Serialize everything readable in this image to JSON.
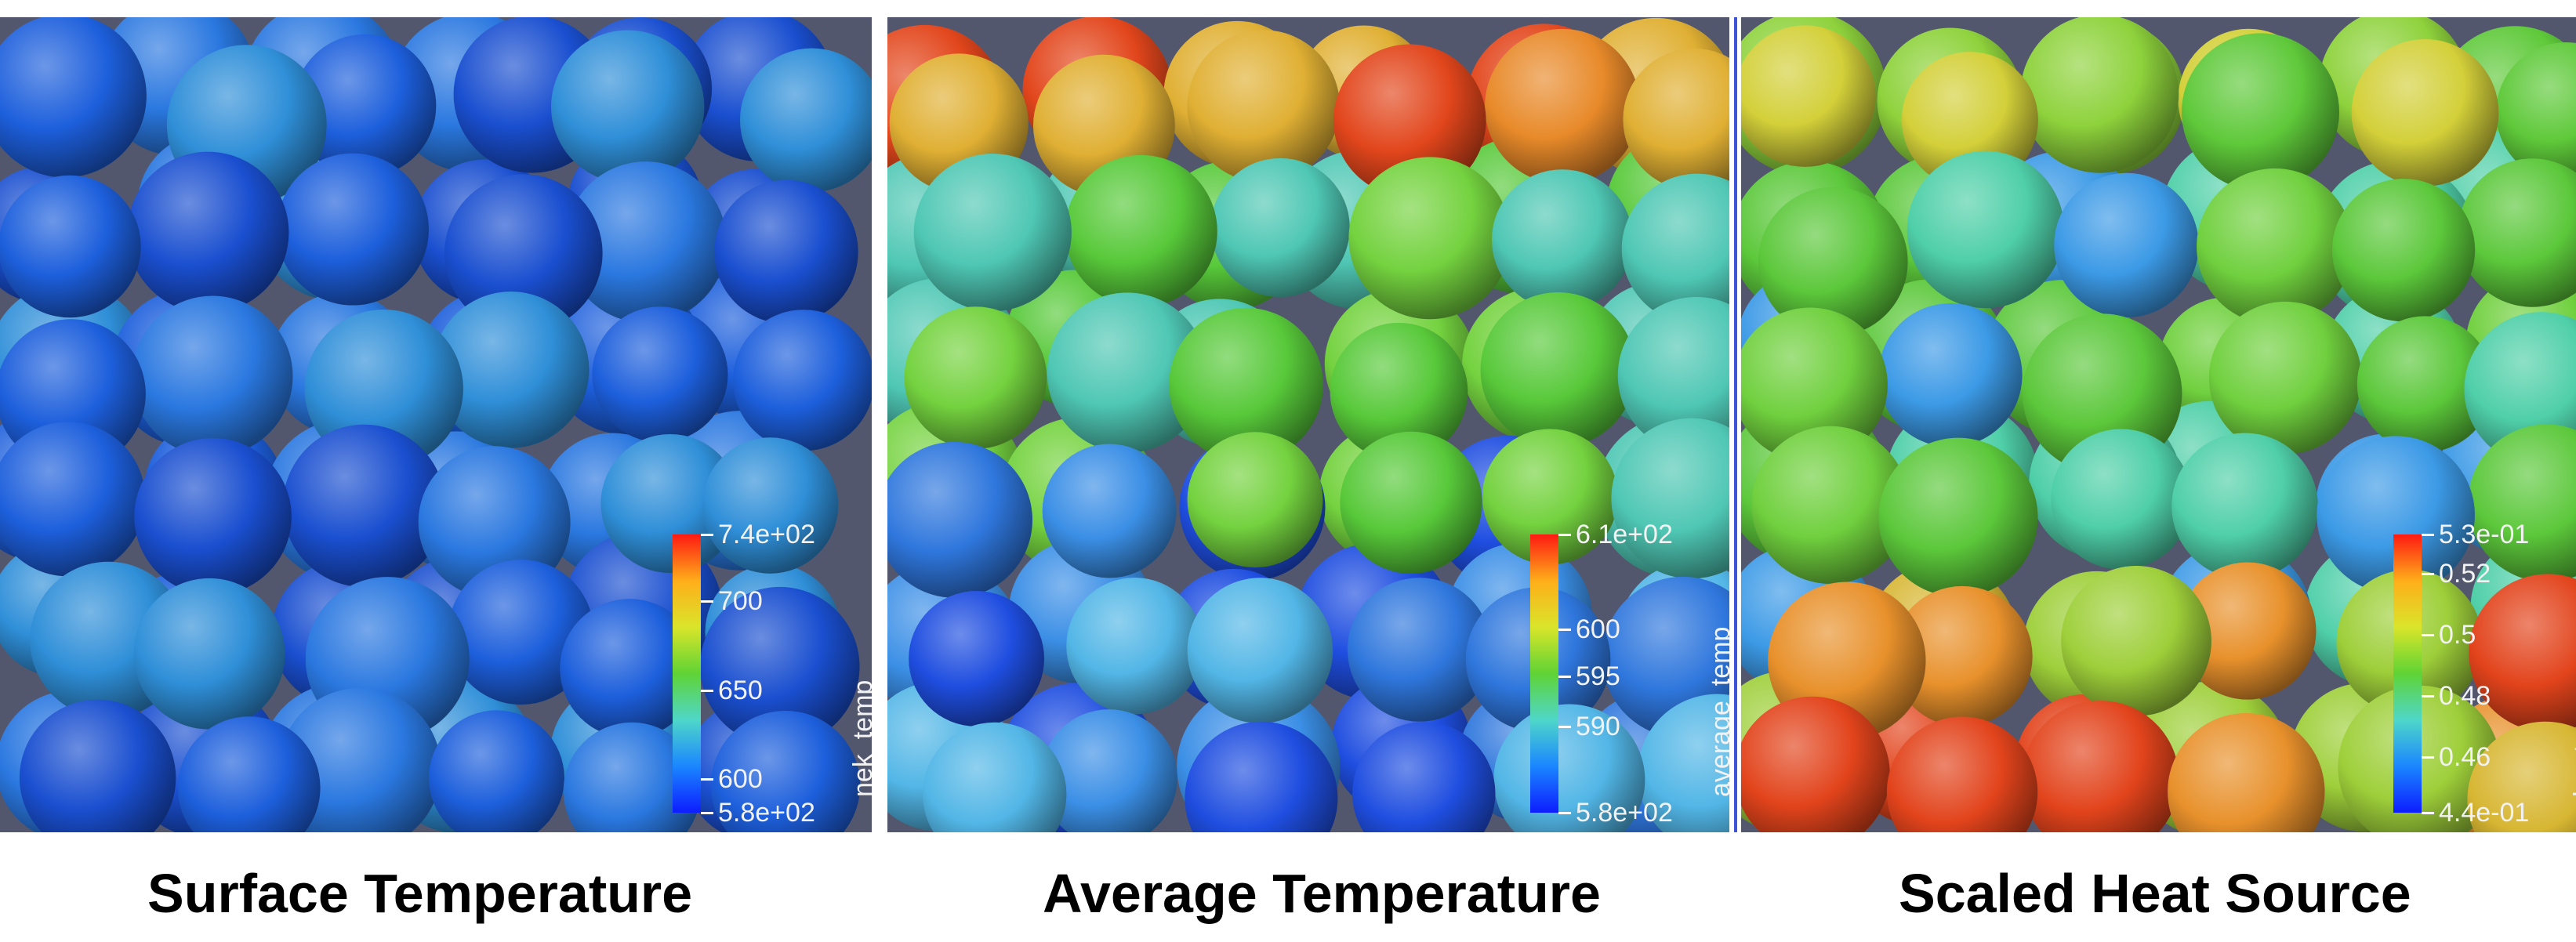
{
  "panels": [
    {
      "caption": "Surface Temperature",
      "colorbar": {
        "title": "nek_temp",
        "labels": [
          "7.4e+02",
          "700",
          "650",
          "600",
          "5.8e+02"
        ],
        "label_fracs": [
          0,
          0.24,
          0.56,
          0.88,
          1.0
        ]
      }
    },
    {
      "caption": "Average Temperature",
      "colorbar": {
        "title": "average_temp",
        "labels": [
          "6.1e+02",
          "600",
          "595",
          "590",
          "5.8e+02"
        ],
        "label_fracs": [
          0,
          0.34,
          0.51,
          0.69,
          1.0
        ]
      }
    },
    {
      "caption": "Scaled Heat Source",
      "colorbar": {
        "title": "heat_source",
        "labels": [
          "5.3e-01",
          "0.52",
          "0.5",
          "0.48",
          "0.46",
          "4.4e-01"
        ],
        "label_fracs": [
          0,
          0.14,
          0.36,
          0.58,
          0.8,
          1.0
        ]
      }
    }
  ],
  "colors": {
    "background": "#52576e",
    "colormap": [
      "#ff1a12",
      "#ffae1a",
      "#d9e52a",
      "#5fd335",
      "#4fd7c9",
      "#1a86ff",
      "#0d1dff"
    ]
  }
}
